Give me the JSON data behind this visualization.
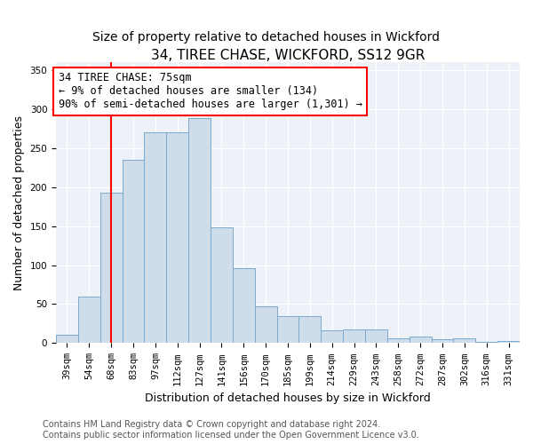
{
  "title": "34, TIREE CHASE, WICKFORD, SS12 9GR",
  "subtitle": "Size of property relative to detached houses in Wickford",
  "xlabel": "Distribution of detached houses by size in Wickford",
  "ylabel": "Number of detached properties",
  "categories": [
    "39sqm",
    "54sqm",
    "68sqm",
    "83sqm",
    "97sqm",
    "112sqm",
    "127sqm",
    "141sqm",
    "156sqm",
    "170sqm",
    "185sqm",
    "199sqm",
    "214sqm",
    "229sqm",
    "243sqm",
    "258sqm",
    "272sqm",
    "287sqm",
    "302sqm",
    "316sqm",
    "331sqm"
  ],
  "values": [
    11,
    60,
    193,
    235,
    270,
    270,
    288,
    148,
    96,
    47,
    35,
    35,
    17,
    18,
    18,
    6,
    9,
    5,
    6,
    2,
    3
  ],
  "bar_color": "#cfdce9",
  "bar_edge_color": "#7aaad0",
  "vline_x_idx": 2,
  "vline_color": "red",
  "annotation_text": "34 TIREE CHASE: 75sqm\n← 9% of detached houses are smaller (134)\n90% of semi-detached houses are larger (1,301) →",
  "annotation_box_color": "white",
  "annotation_box_edge": "red",
  "ylim": [
    0,
    360
  ],
  "yticks": [
    0,
    50,
    100,
    150,
    200,
    250,
    300,
    350
  ],
  "footer1": "Contains HM Land Registry data © Crown copyright and database right 2024.",
  "footer2": "Contains public sector information licensed under the Open Government Licence v3.0.",
  "bg_color": "#edf2f9",
  "title_fontsize": 11,
  "subtitle_fontsize": 10,
  "axis_label_fontsize": 9,
  "tick_fontsize": 7.5,
  "annotation_fontsize": 8.5,
  "footer_fontsize": 7
}
